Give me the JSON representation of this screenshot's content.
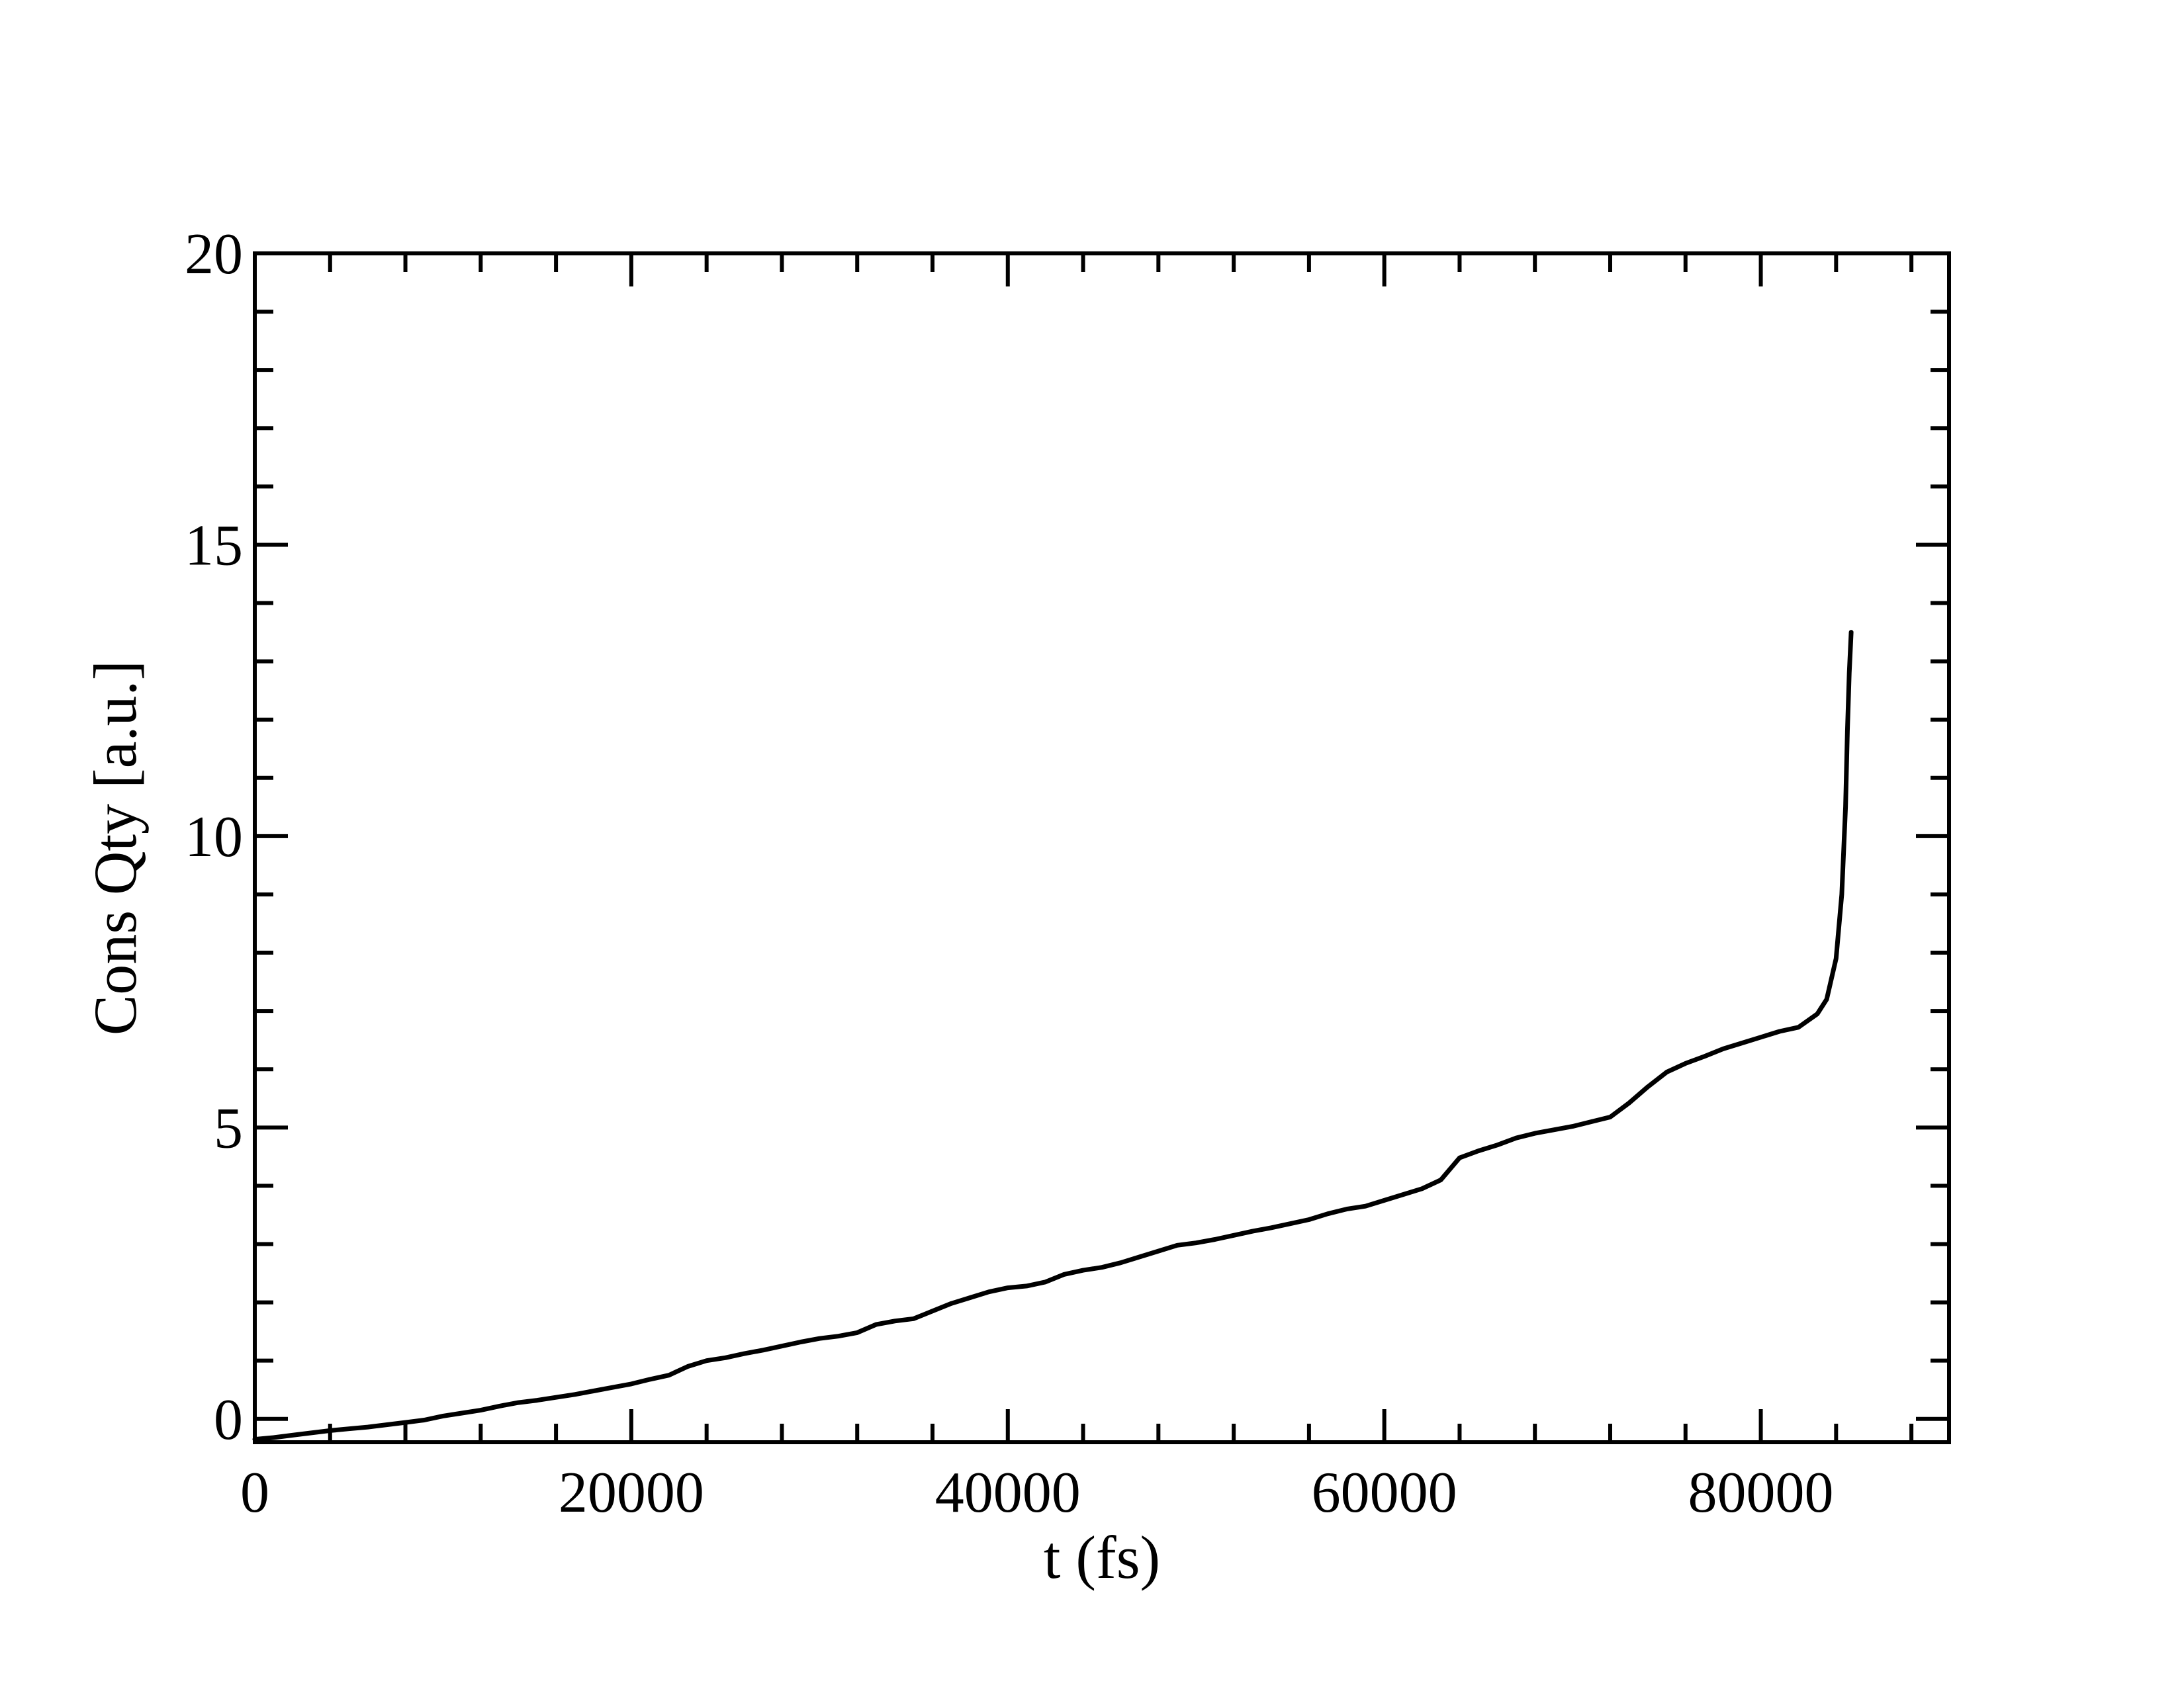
{
  "chart_data": {
    "type": "line",
    "xlabel": "t (fs)",
    "ylabel": "Cons Qty [a.u.]",
    "xlim": [
      0,
      90000
    ],
    "ylim": [
      -0.4,
      20
    ],
    "xticks": [
      0,
      20000,
      40000,
      60000,
      80000
    ],
    "xtick_labels": [
      "0",
      "20000",
      "40000",
      "60000",
      "80000"
    ],
    "yticks": [
      0,
      5,
      10,
      15,
      20
    ],
    "ytick_labels": [
      "0",
      "5",
      "10",
      "15",
      "20"
    ],
    "x_minor_step": 4000,
    "y_minor_step": 1,
    "grid": false,
    "line_color": "#000000",
    "series": [
      {
        "x": [
          0,
          1000,
          2000,
          3000,
          4000,
          5000,
          6000,
          7000,
          8000,
          9000,
          10000,
          11000,
          12000,
          13000,
          14000,
          15000,
          16000,
          17000,
          18000,
          19000,
          20000,
          21000,
          22000,
          23000,
          24000,
          25000,
          26000,
          27000,
          28000,
          29000,
          30000,
          31000,
          32000,
          33000,
          34000,
          35000,
          36000,
          37000,
          38000,
          39000,
          40000,
          41000,
          42000,
          43000,
          44000,
          45000,
          46000,
          47000,
          48000,
          49000,
          50000,
          51000,
          52000,
          53000,
          54000,
          55000,
          56000,
          57000,
          58000,
          59000,
          60000,
          61000,
          62000,
          63000,
          64000,
          65000,
          66000,
          67000,
          68000,
          69000,
          70000,
          71000,
          72000,
          73000,
          74000,
          75000,
          76000,
          77000,
          78000,
          79000,
          80000,
          81000,
          82000,
          83000,
          83500,
          84000,
          84300,
          84500,
          84600,
          84700,
          84800
        ],
        "y": [
          -0.35,
          -0.32,
          -0.28,
          -0.24,
          -0.2,
          -0.17,
          -0.14,
          -0.1,
          -0.06,
          -0.02,
          0.05,
          0.1,
          0.15,
          0.22,
          0.28,
          0.32,
          0.37,
          0.42,
          0.48,
          0.54,
          0.6,
          0.68,
          0.75,
          0.9,
          1.0,
          1.05,
          1.12,
          1.18,
          1.25,
          1.32,
          1.38,
          1.42,
          1.48,
          1.62,
          1.68,
          1.72,
          1.85,
          1.98,
          2.08,
          2.18,
          2.25,
          2.28,
          2.35,
          2.48,
          2.55,
          2.6,
          2.68,
          2.78,
          2.88,
          2.98,
          3.02,
          3.08,
          3.15,
          3.22,
          3.28,
          3.35,
          3.42,
          3.52,
          3.6,
          3.65,
          3.75,
          3.85,
          3.95,
          4.1,
          4.48,
          4.6,
          4.7,
          4.82,
          4.9,
          4.96,
          5.02,
          5.1,
          5.18,
          5.42,
          5.7,
          5.95,
          6.1,
          6.22,
          6.35,
          6.45,
          6.55,
          6.65,
          6.72,
          6.95,
          7.2,
          7.9,
          9.0,
          10.5,
          11.8,
          12.8,
          13.5
        ]
      }
    ]
  }
}
